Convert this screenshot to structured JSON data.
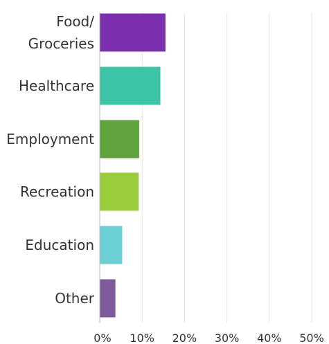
{
  "chart_data": {
    "type": "bar",
    "orientation": "horizontal",
    "categories": [
      "Food/\nGroceries",
      "Healthcare",
      "Employment",
      "Recreation",
      "Education",
      "Other"
    ],
    "values": [
      15.5,
      14.3,
      9.3,
      9.2,
      5.3,
      3.7
    ],
    "colors": [
      "#7B2FAE",
      "#3CC4A6",
      "#5FA33A",
      "#9ACD3A",
      "#6BCFD6",
      "#7E5B9C"
    ],
    "xlim": [
      0,
      50
    ],
    "ticks": [
      0,
      10,
      20,
      30,
      40,
      50
    ],
    "tick_labels": [
      "0%",
      "10%",
      "20%",
      "30%",
      "40%",
      "50%"
    ],
    "grid": true,
    "title": "",
    "xlabel": "",
    "ylabel": ""
  }
}
